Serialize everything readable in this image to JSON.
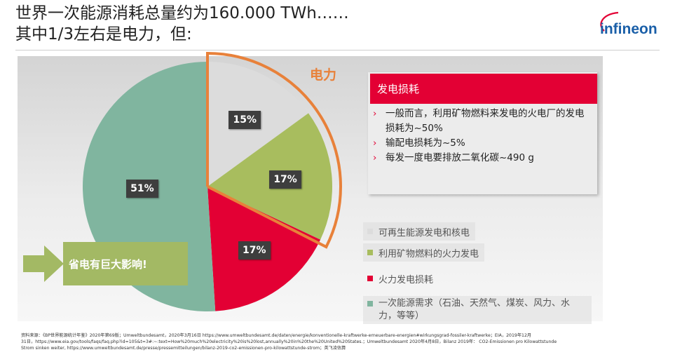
{
  "title": {
    "line1": "世界一次能源消耗总量约为160.000 TWh……",
    "line2": "其中1/3左右是电力，但:"
  },
  "logo": {
    "text": "infineon",
    "color": "#1a5fa8"
  },
  "chart_data": {
    "type": "pie",
    "values": [
      15,
      17,
      17,
      51
    ],
    "labels": [
      "15%",
      "17%",
      "17%",
      "51%"
    ],
    "colors": [
      "#dcdcdc",
      "#a8bd5e",
      "#e30034",
      "#80b59f"
    ],
    "legend": [
      "可再生能源发电和核电",
      "利用矿物燃料的火力发电",
      "火力发电损耗",
      "一次能源需求（石油、天然气、煤炭、风力、水力，等等）"
    ],
    "annotation": "电力"
  },
  "callout": {
    "arrow_text": "省电有巨大影响!"
  },
  "loss": {
    "header": "发电损耗",
    "items": [
      "一般而言，利用矿物燃料来发电的火电厂的发电损耗为~50%",
      "输配电损耗为~5%",
      "每发一度电要排放二氧化碳~490 g"
    ]
  },
  "footnote": {
    "line1": "资料来源：《BP世界能源统计年鉴》2020年第69版；Umweltbundesamt，2020年3月16日 https://www.umweltbundesamt.de/daten/energie/konventionelle-kraftwerke-erneuerbare-energien#wirkungsgrad-fossiler-kraftwerke；EIA，2019年12月",
    "line2": "31日，https://www.eia.gov/tools/faqs/faq.php?id=105&t=3#:~:text=How%20much%20electricity%20is%20lost,annually%20in%20the%20United%20States.；Umweltbundesamt 2020年4月8日，Bilanz 2019年： CO2-Emissionen pro Kilowattstunde",
    "line3": "Strom sinken weiter, https://www.umweltbundesamt.de/presse/pressemitteilungen/bilanz-2019-co2-emissionen-pro-kilowattstunde-strom；英飞凌估算"
  }
}
